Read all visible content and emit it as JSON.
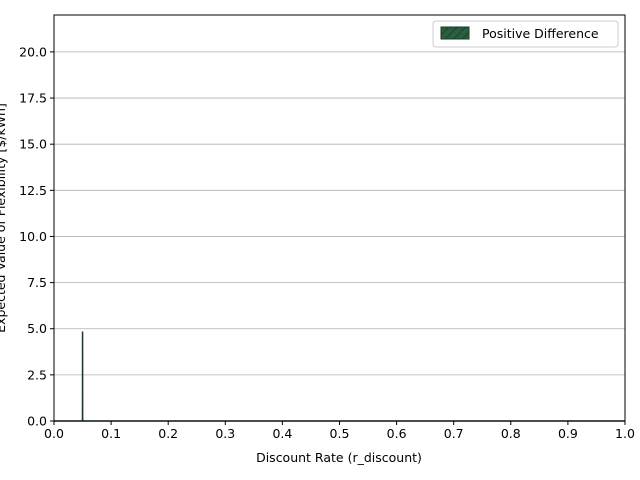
{
  "chart_data": {
    "type": "area",
    "title": "",
    "xlabel": "Discount Rate (r_discount)",
    "ylabel": "Expected Value of Flexibility [$/kWh]",
    "xlim": [
      0.0,
      1.0
    ],
    "ylim": [
      0.0,
      22.0
    ],
    "xticks": [
      0.0,
      0.1,
      0.2,
      0.3,
      0.4,
      0.5,
      0.6,
      0.7,
      0.8,
      0.9,
      1.0
    ],
    "xtick_labels": [
      "0.0",
      "0.1",
      "0.2",
      "0.3",
      "0.4",
      "0.5",
      "0.6",
      "0.7",
      "0.8",
      "0.9",
      "1.0"
    ],
    "yticks": [
      0.0,
      2.5,
      5.0,
      7.5,
      10.0,
      12.5,
      15.0,
      17.5,
      20.0
    ],
    "ytick_labels": [
      "0.0",
      "2.5",
      "5.0",
      "7.5",
      "10.0",
      "12.5",
      "15.0",
      "17.5",
      "20.0"
    ],
    "grid": "y-axis horizontal lines",
    "legend_position": "top-right",
    "series": [
      {
        "name": "Positive Difference",
        "color": "#2a5e3f",
        "edge_color": "#1a3a28",
        "hatch": "diagonal",
        "x": [
          0.0,
          0.0499,
          0.05,
          0.0501,
          1.0
        ],
        "y": [
          0.0,
          0.0,
          4.85,
          0.0,
          0.0
        ]
      }
    ]
  }
}
